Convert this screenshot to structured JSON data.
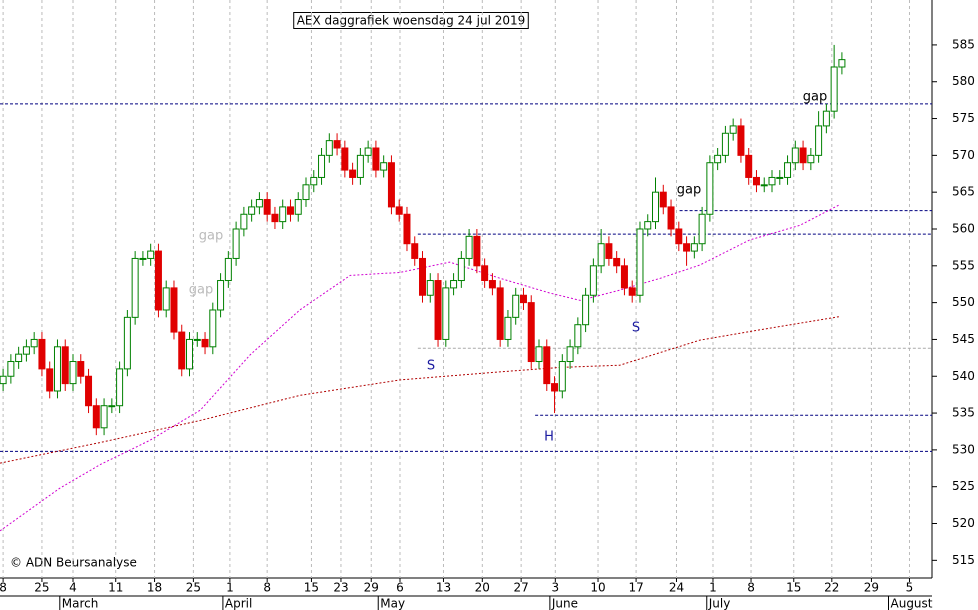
{
  "chart_data": {
    "type": "candlestick",
    "title": "AEX daggrafiek woensdag 24 jul 2019",
    "source": "© ADN Beursanalyse",
    "up_color": "#008000",
    "down_color": "#e00000",
    "x": [
      0,
      1,
      2,
      3,
      4,
      5,
      6,
      7,
      8,
      9,
      10,
      11,
      12,
      13,
      14,
      15,
      16,
      17,
      18,
      19,
      20,
      21,
      22,
      23,
      24,
      25,
      26,
      27,
      28,
      29,
      30,
      31,
      32,
      33,
      34,
      35,
      36,
      37,
      38,
      39,
      40,
      41,
      42,
      43,
      44,
      45,
      46,
      47,
      48,
      49,
      50,
      51,
      52,
      53,
      54,
      55,
      56,
      57,
      58,
      59,
      60,
      61,
      62,
      63,
      64,
      65,
      66,
      67,
      68,
      69,
      70,
      71,
      72,
      73,
      74,
      75,
      76,
      77,
      78,
      79,
      80,
      81,
      82,
      83,
      84,
      85,
      86,
      87,
      88,
      89,
      90,
      91,
      92,
      93,
      94,
      95,
      96,
      97,
      98,
      99,
      100,
      101,
      102,
      103,
      104,
      105,
      106,
      107,
      108
    ],
    "open": [
      539,
      540,
      542,
      543,
      544,
      545,
      541,
      538,
      544,
      539,
      542,
      540,
      536,
      533,
      536,
      536,
      541,
      548,
      556,
      556,
      557,
      549,
      552,
      546,
      541,
      545,
      545,
      544,
      549,
      553,
      556,
      560,
      562,
      563,
      564,
      562,
      561,
      563,
      562,
      564,
      566,
      567,
      570,
      572,
      571,
      568,
      567,
      570,
      571,
      568,
      569,
      563,
      562,
      558,
      556,
      551,
      553,
      545,
      552,
      553,
      556,
      559,
      555,
      553,
      552,
      545,
      548,
      551,
      550,
      542,
      544,
      539,
      538,
      542,
      544,
      547,
      551,
      555,
      558,
      556,
      555,
      552,
      551,
      560,
      561,
      565,
      563,
      560,
      558,
      557,
      558,
      562,
      569,
      570,
      573,
      574,
      570,
      567,
      566,
      566,
      567,
      567,
      569,
      571,
      569,
      570,
      574,
      576,
      582
    ],
    "high": [
      541,
      543,
      544,
      545,
      546,
      546,
      542,
      545,
      545,
      543,
      543,
      541,
      537,
      537,
      537,
      542,
      549,
      557,
      557,
      558,
      558,
      553,
      553,
      547,
      546,
      546,
      546,
      550,
      554,
      557,
      561,
      563,
      564,
      565,
      565,
      563,
      564,
      564,
      565,
      567,
      568,
      571,
      573,
      573,
      572,
      569,
      571,
      572,
      572,
      570,
      570,
      564,
      563,
      559,
      557,
      554,
      554,
      553,
      554,
      557,
      560,
      560,
      556,
      554,
      553,
      549,
      552,
      552,
      551,
      545,
      545,
      540,
      543,
      545,
      548,
      552,
      556,
      560,
      559,
      557,
      556,
      553,
      561,
      562,
      567,
      566,
      564,
      561,
      559,
      559,
      563,
      570,
      571,
      574,
      575,
      575,
      571,
      568,
      567,
      568,
      568,
      570,
      572,
      572,
      571,
      576,
      577,
      585,
      584
    ],
    "low": [
      538,
      539,
      541,
      542,
      543,
      540,
      537,
      537,
      538,
      538,
      539,
      535,
      532,
      532,
      535,
      535,
      540,
      547,
      555,
      555,
      548,
      548,
      545,
      540,
      540,
      544,
      543,
      543,
      548,
      552,
      555,
      559,
      561,
      562,
      561,
      560,
      560,
      561,
      561,
      563,
      565,
      566,
      569,
      570,
      567,
      566,
      566,
      569,
      567,
      567,
      562,
      561,
      557,
      555,
      550,
      550,
      544,
      544,
      551,
      552,
      555,
      554,
      552,
      551,
      544,
      544,
      547,
      549,
      541,
      541,
      538,
      535,
      537,
      541,
      543,
      546,
      550,
      554,
      555,
      554,
      551,
      550,
      550,
      559,
      560,
      562,
      559,
      557,
      555,
      556,
      557,
      561,
      568,
      569,
      572,
      569,
      566,
      565,
      565,
      565,
      566,
      566,
      568,
      568,
      568,
      569,
      573,
      575,
      581
    ],
    "close": [
      540,
      542,
      543,
      544,
      545,
      541,
      538,
      544,
      539,
      542,
      540,
      536,
      533,
      536,
      536,
      541,
      548,
      556,
      556,
      557,
      549,
      552,
      546,
      541,
      545,
      545,
      544,
      549,
      553,
      556,
      560,
      562,
      563,
      564,
      562,
      561,
      563,
      562,
      564,
      566,
      567,
      570,
      572,
      571,
      568,
      567,
      570,
      571,
      568,
      569,
      563,
      562,
      558,
      556,
      551,
      553,
      545,
      552,
      553,
      556,
      559,
      555,
      553,
      552,
      545,
      548,
      551,
      550,
      542,
      544,
      539,
      538,
      542,
      544,
      547,
      551,
      555,
      558,
      556,
      555,
      552,
      551,
      560,
      561,
      565,
      563,
      560,
      558,
      557,
      558,
      562,
      569,
      570,
      573,
      574,
      570,
      567,
      566,
      566,
      567,
      567,
      569,
      571,
      569,
      570,
      574,
      576,
      582,
      583
    ],
    "overlays": [
      {
        "color": "#d000d0",
        "x": [
          -0.4,
          7.3,
          12.5,
          18.9,
          25.4,
          31.8,
          38.2,
          44.7,
          51.1,
          57.5,
          64,
          70.4,
          74.3,
          79.4,
          84.6,
          89.7,
          96.1,
          102.6,
          107.7
        ],
        "values": [
          519,
          524.8,
          528,
          531.3,
          535.4,
          542.9,
          549,
          553.7,
          554.1,
          555.5,
          553.3,
          551.3,
          550.3,
          551.7,
          553.3,
          555.1,
          558.5,
          560.5,
          563.3
        ]
      },
      {
        "color": "#b00000",
        "x": [
          -0.4,
          12.5,
          25.4,
          38.2,
          51.1,
          64,
          71.7,
          79.4,
          89.7,
          97.4,
          107.7
        ],
        "values": [
          528.2,
          531,
          534,
          537.4,
          539.5,
          540.6,
          541.2,
          541.5,
          544.9,
          546.3,
          548.1
        ]
      }
    ],
    "levels": [
      {
        "value": 577,
        "from": -0.4,
        "color": "#000080"
      },
      {
        "value": 562.5,
        "from": 87.1,
        "color": "#000080"
      },
      {
        "value": 559.3,
        "from": 53.4,
        "color": "#000080"
      },
      {
        "value": 543.8,
        "from": 53.4,
        "color": "#aaaaaa"
      },
      {
        "value": 534.7,
        "from": 68.5,
        "color": "#000080"
      },
      {
        "value": 529.8,
        "from": -0.4,
        "color": "#000080"
      }
    ],
    "annotations": [
      "gap",
      "gap",
      "gap",
      "gap",
      "S",
      "S",
      "H"
    ],
    "xlim": [
      -0.4,
      119.6
    ],
    "ylim": [
      512.6,
      591.1
    ],
    "yticks": [
      515,
      520,
      525,
      530,
      535,
      540,
      545,
      550,
      555,
      560,
      565,
      570,
      575,
      580,
      585
    ],
    "xticks": [
      {
        "value": 0,
        "label": "8"
      },
      {
        "value": 5,
        "label": "25"
      },
      {
        "value": 9,
        "label": "4"
      },
      {
        "value": 14.5,
        "label": "11"
      },
      {
        "value": 19.5,
        "label": "18"
      },
      {
        "value": 24.5,
        "label": "25"
      },
      {
        "value": 29.2,
        "label": "1"
      },
      {
        "value": 34,
        "label": "8"
      },
      {
        "value": 39.7,
        "label": "15"
      },
      {
        "value": 43.5,
        "label": "23"
      },
      {
        "value": 47.4,
        "label": "29"
      },
      {
        "value": 51.1,
        "label": "6"
      },
      {
        "value": 56.7,
        "label": "13"
      },
      {
        "value": 61.7,
        "label": "20"
      },
      {
        "value": 66.7,
        "label": "27"
      },
      {
        "value": 71.1,
        "label": "3"
      },
      {
        "value": 76.6,
        "label": "10"
      },
      {
        "value": 81.5,
        "label": "17"
      },
      {
        "value": 86.7,
        "label": "24"
      },
      {
        "value": 91.4,
        "label": "1"
      },
      {
        "value": 96.3,
        "label": "8"
      },
      {
        "value": 101.8,
        "label": "15"
      },
      {
        "value": 106.7,
        "label": "22"
      },
      {
        "value": 111.8,
        "label": "29"
      },
      {
        "value": 116.7,
        "label": "5"
      }
    ],
    "month_ticks": [
      {
        "value": 7.3,
        "label": "March"
      },
      {
        "value": 28.3,
        "label": "April"
      },
      {
        "value": 48.3,
        "label": "May"
      },
      {
        "value": 70.4,
        "label": "June"
      },
      {
        "value": 90.6,
        "label": "July"
      },
      {
        "value": 114,
        "label": "August"
      }
    ],
    "grid": true
  }
}
